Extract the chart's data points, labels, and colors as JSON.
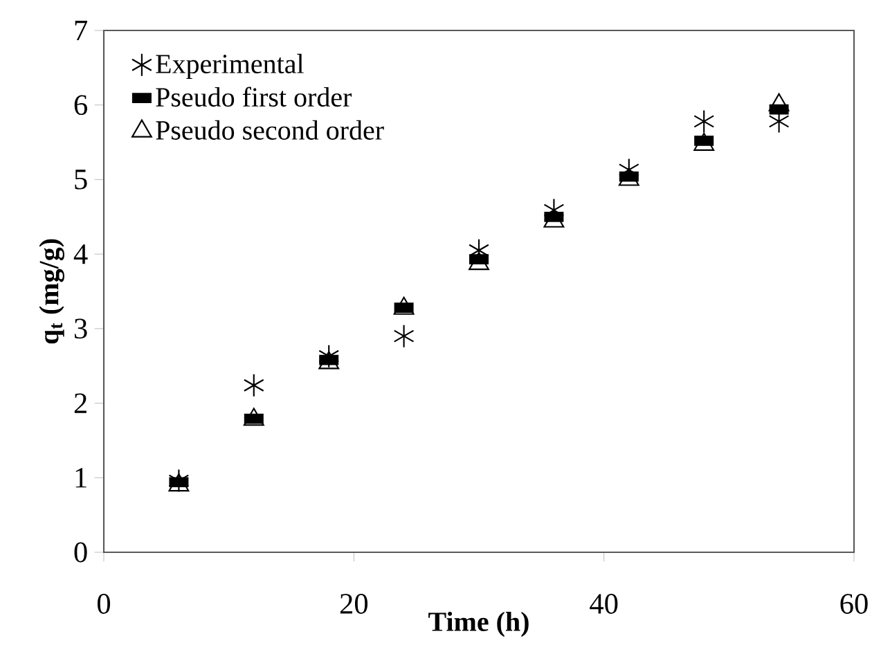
{
  "chart_data": {
    "type": "scatter",
    "xlabel": "Time (h)",
    "ylabel": "**q$_{t}$ (mg/g)**",
    "xlim": [
      0,
      60
    ],
    "ylim": [
      0,
      7
    ],
    "xticks": [
      0,
      20,
      40,
      60
    ],
    "yticks": [
      0,
      1,
      2,
      3,
      4,
      5,
      6,
      7
    ],
    "grid": false,
    "legend": "top left",
    "x": [
      6,
      12,
      18,
      24,
      30,
      36,
      42,
      48,
      54
    ],
    "series": [
      {
        "name": "Experimental",
        "color": "#000000",
        "marker": "cross",
        "values": [
          0.96,
          2.24,
          2.63,
          2.9,
          4.05,
          4.59,
          5.13,
          5.78,
          5.78
        ]
      },
      {
        "name": "Pseudo first order",
        "color": "#000000",
        "marker": "square",
        "values": [
          0.94,
          1.79,
          2.58,
          3.28,
          3.93,
          4.5,
          5.04,
          5.52,
          5.94
        ]
      },
      {
        "name": "Pseudo second order",
        "color": "#000000",
        "marker": "triangle",
        "values": [
          0.9,
          1.78,
          2.54,
          3.27,
          3.87,
          4.44,
          5.0,
          5.47,
          6.0
        ]
      }
    ]
  }
}
